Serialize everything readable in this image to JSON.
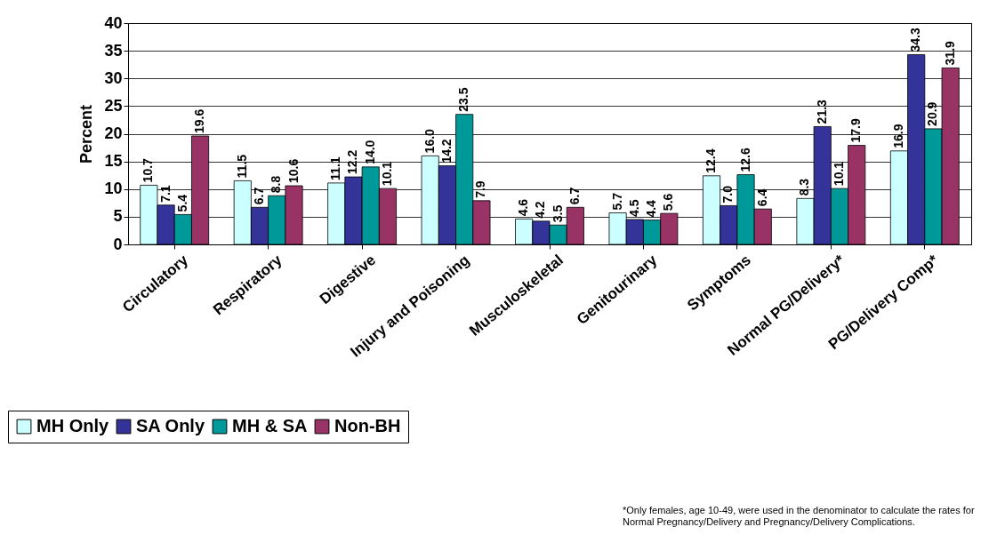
{
  "chart_data": {
    "type": "bar",
    "ylabel": "Percent",
    "categories": [
      "Circulatory",
      "Respiratory",
      "Digestive",
      "Injury and Poisoning",
      "Musculoskeletal",
      "Genitourinary",
      "Symptoms",
      "Normal PG/Delivery*",
      "PG/Delivery Comp*"
    ],
    "series": [
      {
        "name": "MH Only",
        "color": "#ccffff",
        "values": [
          10.7,
          11.5,
          11.1,
          16.0,
          4.6,
          5.7,
          12.4,
          8.3,
          16.9
        ],
        "value_labels": [
          "10.7",
          "11.5",
          "11.1",
          "16.0",
          "4.6",
          "5.7",
          "12.4",
          "8.3",
          "16.9"
        ]
      },
      {
        "name": "SA Only",
        "color": "#333399",
        "values": [
          7.1,
          6.7,
          12.2,
          14.2,
          4.2,
          4.5,
          7.0,
          21.3,
          34.3
        ],
        "value_labels": [
          "7.1",
          "6.7",
          "12.2",
          "14.2",
          "4.2",
          "4.5",
          "7.0",
          "21.3",
          "34.3"
        ]
      },
      {
        "name": "MH & SA",
        "color": "#009999",
        "values": [
          5.4,
          8.8,
          14.0,
          23.5,
          3.5,
          4.4,
          12.6,
          10.1,
          20.9
        ],
        "value_labels": [
          "5.4",
          "8.8",
          "14.0",
          "23.5",
          "3.5",
          "4.4",
          "12.6",
          "10.1",
          "20.9"
        ]
      },
      {
        "name": "Non-BH",
        "color": "#993366",
        "values": [
          19.6,
          10.6,
          10.1,
          7.9,
          6.7,
          5.6,
          6.4,
          17.9,
          31.9
        ],
        "value_labels": [
          "19.6",
          "10.6",
          "10.1",
          "7.9",
          "6.7",
          "5.6",
          "6.4",
          "17.9",
          "31.9"
        ]
      }
    ],
    "ylim": [
      0,
      40
    ],
    "yticks": [
      0,
      5,
      10,
      15,
      20,
      25,
      30,
      35,
      40
    ],
    "grid": "y",
    "legend": "bottom left",
    "data_labels": true,
    "annotations": [
      "*Only females, age 10-49, were used in the denominator to calculate the rates for",
      "Normal Pregnancy/Delivery and Pregnancy/Delivery Complications."
    ]
  }
}
